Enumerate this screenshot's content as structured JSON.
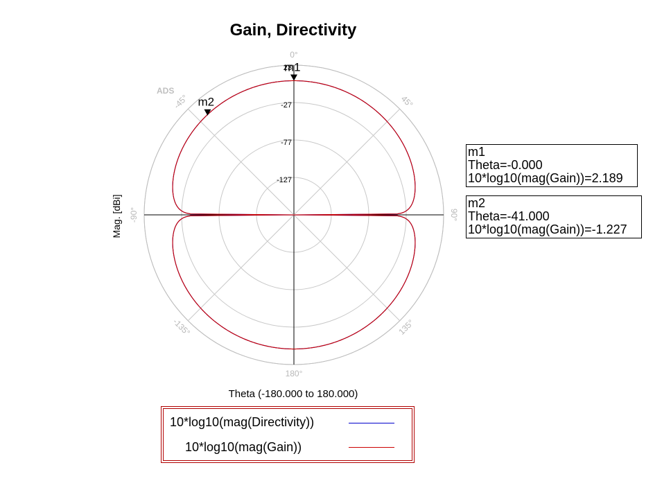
{
  "chart_data": {
    "type": "polar",
    "title": "Gain, Directivity",
    "xlabel": "Theta (-180.000 to 180.000)",
    "ylabel": "Mag. [dBi]",
    "watermark": "ADS",
    "radial_range": [
      -177,
      23
    ],
    "radial_ticks": [
      "23",
      "-27",
      "-77",
      "-127"
    ],
    "angle_ticks": [
      "0°",
      "45°",
      "90°",
      "135°",
      "180°",
      "-135°",
      "-90°",
      "-45°"
    ],
    "grid": true,
    "legend_position": "bottom",
    "series": [
      {
        "name": "10*log10(mag(Directivity))",
        "color": "#0000cc",
        "formula": "cos2",
        "peak_dB": 2.189
      },
      {
        "name": "10*log10(mag(Gain))",
        "color": "#cc0000",
        "formula": "cos2",
        "peak_dB": 2.189
      }
    ],
    "markers": [
      {
        "name": "m1",
        "theta": 0,
        "value": 2.189,
        "lines": [
          "m1",
          "Theta=-0.000",
          "10*log10(mag(Gain))=2.189"
        ]
      },
      {
        "name": "m2",
        "theta": -41,
        "value": -1.227,
        "lines": [
          "m2",
          "Theta=-41.000",
          "10*log10(mag(Gain))=-1.227"
        ]
      }
    ]
  }
}
